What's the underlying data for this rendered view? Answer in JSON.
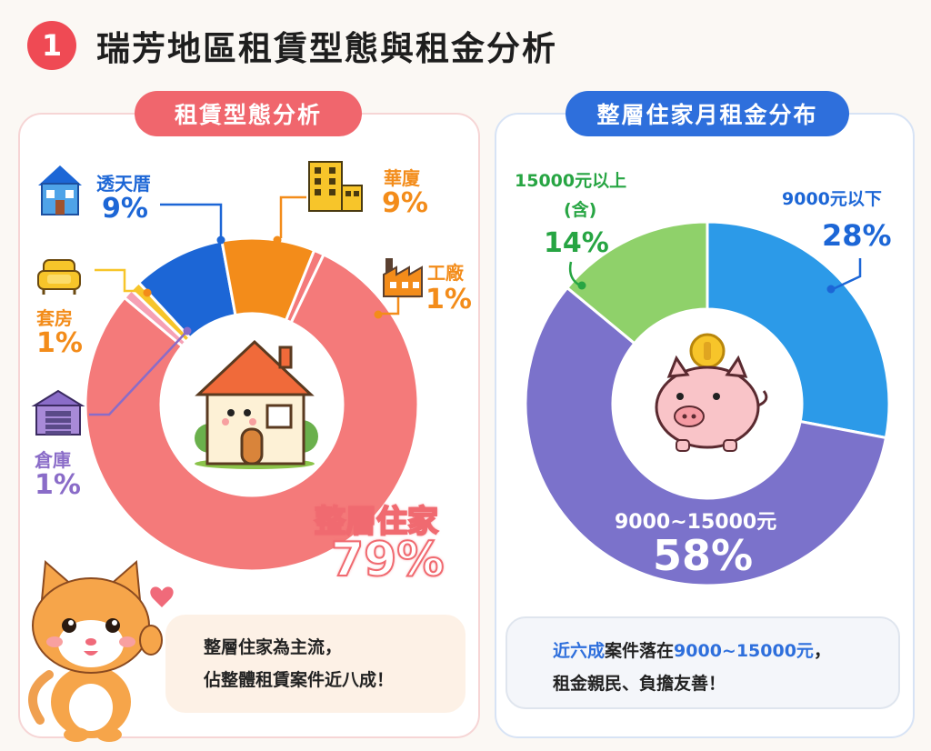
{
  "title": "瑞芳地區租賃型態與租金分析",
  "section_number": "1",
  "colors": {
    "red": "#f47a7a",
    "blue": "#2e6fdc",
    "orange": "#f38c1a",
    "purple": "#8a6cc8",
    "green": "#27a543",
    "light_blue": "#2c9ae8",
    "lavender": "#7b72cb",
    "lime": "#8fd16a"
  },
  "left_panel": {
    "heading": "租賃型態分析",
    "note_line1": "整層住家為主流，",
    "note_line2": "佔整體租賃案件近八成！"
  },
  "right_panel": {
    "heading": "整層住家月租金分布",
    "note_highlight": "近六成",
    "note_mid": "案件落在",
    "note_range": "9000~15000元",
    "note_comma": "，",
    "note_line2": "租金親民、負擔友善！"
  },
  "chart_data": [
    {
      "type": "pie",
      "variant": "donut",
      "title": "租賃型態分析",
      "slices": [
        {
          "name": "整層住家",
          "value": 79,
          "label": "79%",
          "color": "#f47a7a"
        },
        {
          "name": "倉庫",
          "value": 1,
          "label": "1%",
          "color": "#f6a0b4"
        },
        {
          "name": "套房",
          "value": 1,
          "label": "1%",
          "color": "#f7c52a"
        },
        {
          "name": "透天厝",
          "value": 9,
          "label": "9%",
          "color": "#1c66d6"
        },
        {
          "name": "華廈",
          "value": 9,
          "label": "9%",
          "color": "#f38c1a"
        },
        {
          "name": "工廠",
          "value": 1,
          "label": "1%",
          "color": "#f47a7a"
        }
      ]
    },
    {
      "type": "pie",
      "variant": "donut",
      "title": "整層住家月租金分布",
      "slices": [
        {
          "name": "9000元以下",
          "value": 28,
          "label": "28%",
          "color": "#2c9ae8"
        },
        {
          "name": "9000~15000元",
          "value": 58,
          "label": "58%",
          "color": "#7b72cb"
        },
        {
          "name": "15000元以上(含)",
          "name_line1": "15000元以上",
          "name_line2": "(含)",
          "value": 14,
          "label": "14%",
          "color": "#8fd16a"
        }
      ]
    }
  ]
}
